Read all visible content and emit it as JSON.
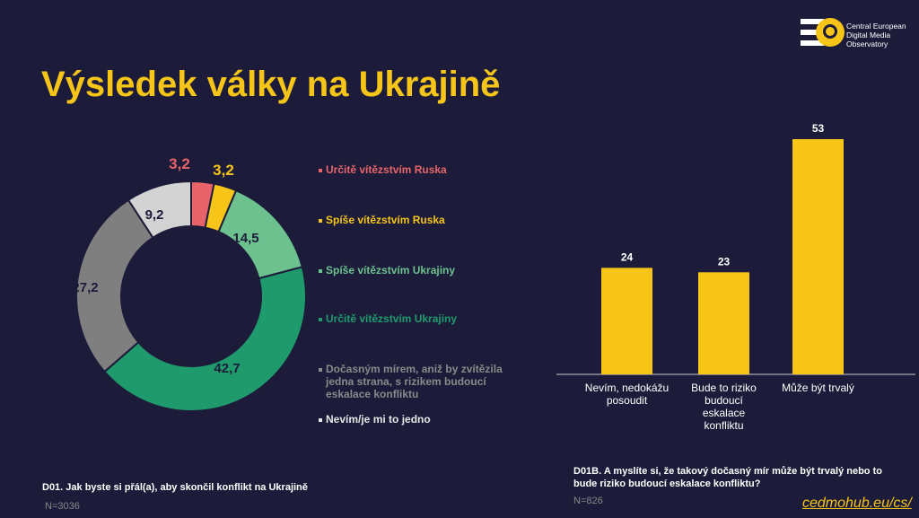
{
  "title": "Výsledek války na Ukrajině",
  "logo": {
    "line1": "Central European",
    "line2": "Digital Media",
    "line3": "Observatory"
  },
  "chart_data": [
    {
      "type": "pie",
      "subtype": "donut",
      "categories": [
        "Určitě vítězstvím Ruska",
        "Spíše vítězstvím Ruska",
        "Spíše vítězstvím Ukrajiny",
        "Určitě vítězstvím Ukrajiny",
        "Dočasným mírem, aniž by zvítězila jedna strana, s rizikem budoucí eskalace konfliktu",
        "Nevím/je mi to jedno"
      ],
      "values": [
        3.2,
        3.2,
        14.5,
        42.7,
        27.2,
        9.2
      ],
      "labels": [
        "3,2",
        "3,2",
        "14,5",
        "42,7",
        "27,2",
        "9,2"
      ],
      "colors": [
        "#e8646a",
        "#f6c518",
        "#6cc18e",
        "#1e9a6c",
        "#7f7f7f",
        "#d3d3d3"
      ],
      "legend_colors": [
        "#e8646a",
        "#f6c518",
        "#6cc18e",
        "#1e9a6c",
        "#8a8a8a",
        "#e6e6e6"
      ],
      "legend": "right",
      "question": "D01. Jak byste si přál(a), aby skončil konflikt na Ukrajině",
      "n": "N=3036"
    },
    {
      "type": "bar",
      "categories": [
        "Nevím, nedokážu posoudit",
        "Bude to riziko budoucí eskalace konfliktu",
        "Může být trvalý"
      ],
      "values": [
        24,
        23,
        53
      ],
      "labels": [
        "24",
        "23",
        "53"
      ],
      "color": "#f6c518",
      "ylim": [
        0,
        53
      ],
      "question": "D01B. A myslíte si, že takový dočasný mír může být trvalý nebo to bude riziko budoucí eskalace konfliktu?",
      "n": "N=826"
    }
  ],
  "link": "cedmohub.eu/cs/"
}
